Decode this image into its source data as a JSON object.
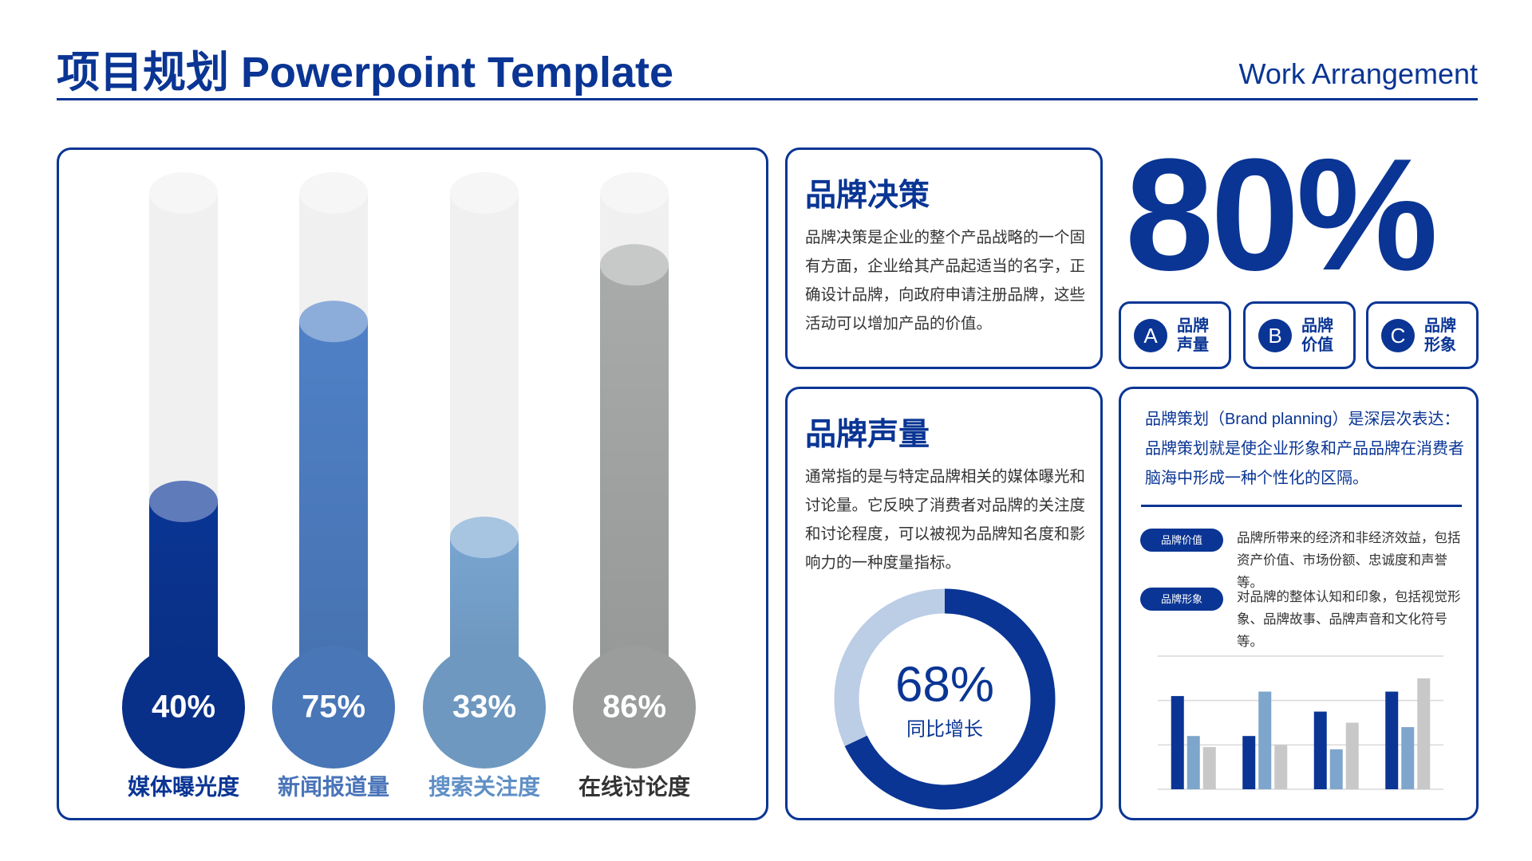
{
  "header": {
    "title": "项目规划 Powerpoint Template",
    "subtitle": "Work Arrangement"
  },
  "decision": {
    "title": "品牌决策",
    "text": "品牌决策是企业的整个产品战略的一个固有方面，企业给其产品起适当的名字，正确设计品牌，向政府申请注册品牌，这些活动可以增加产品的价值。"
  },
  "volume": {
    "title": "品牌声量",
    "text": "通常指的是与特定品牌相关的媒体曝光和讨论量。它反映了消费者对品牌的关注度和讨论程度，可以被视为品牌知名度和影响力的一种度量指标。"
  },
  "big_stat": "80%",
  "badges": [
    {
      "letter": "A",
      "label": [
        "品牌",
        "声量"
      ]
    },
    {
      "letter": "B",
      "label": [
        "品牌",
        "价值"
      ]
    },
    {
      "letter": "C",
      "label": [
        "品牌",
        "形象"
      ]
    }
  ],
  "planning": {
    "text": "品牌策划（Brand planning）是深层次表达：品牌策划就是使企业形象和产品品牌在消费者脑海中形成一种个性化的区隔。",
    "items": [
      {
        "tag": "品牌价值",
        "text": "品牌所带来的经济和非经济效益，包括资产价值、市场份额、忠诚度和声誉等。"
      },
      {
        "tag": "品牌形象",
        "text": "对品牌的整体认知和印象，包括视觉形象、品牌故事、品牌声音和文化符号等。"
      }
    ]
  },
  "chart_data": [
    {
      "type": "thermometer",
      "categories": [
        "媒体曝光度",
        "新闻报道量",
        "搜索关注度",
        "在线讨论度"
      ],
      "values": [
        40,
        75,
        33,
        86
      ],
      "value_labels": [
        "40%",
        "75%",
        "33%",
        "86%"
      ],
      "colors": [
        "#0a3594",
        "#4f80c6",
        "#78a5d0",
        "#a9abab"
      ],
      "label_colors": [
        "#0a3594",
        "#4a74b8",
        "#5f8fc6",
        "#333333"
      ],
      "ylim": [
        0,
        100
      ]
    },
    {
      "type": "donut",
      "values": [
        68
      ],
      "value_labels": [
        "68%"
      ],
      "label": "同比增长",
      "color": "#0a3594",
      "rest_color": "#bccde6",
      "ylim": [
        0,
        100
      ]
    },
    {
      "type": "bar",
      "categories": [
        null,
        null,
        null,
        null
      ],
      "series": [
        {
          "color": "#0a3594",
          "values": [
            2.1,
            1.2,
            1.75,
            2.2
          ]
        },
        {
          "color": "#7ea6cc",
          "values": [
            1.2,
            2.2,
            0.9,
            1.4
          ]
        },
        {
          "color": "#c8c8c8",
          "values": [
            0.95,
            1.0,
            1.5,
            2.5
          ]
        }
      ],
      "ylim": [
        0,
        3
      ],
      "yticks": [
        0,
        1,
        2,
        3
      ],
      "grid": true
    }
  ]
}
